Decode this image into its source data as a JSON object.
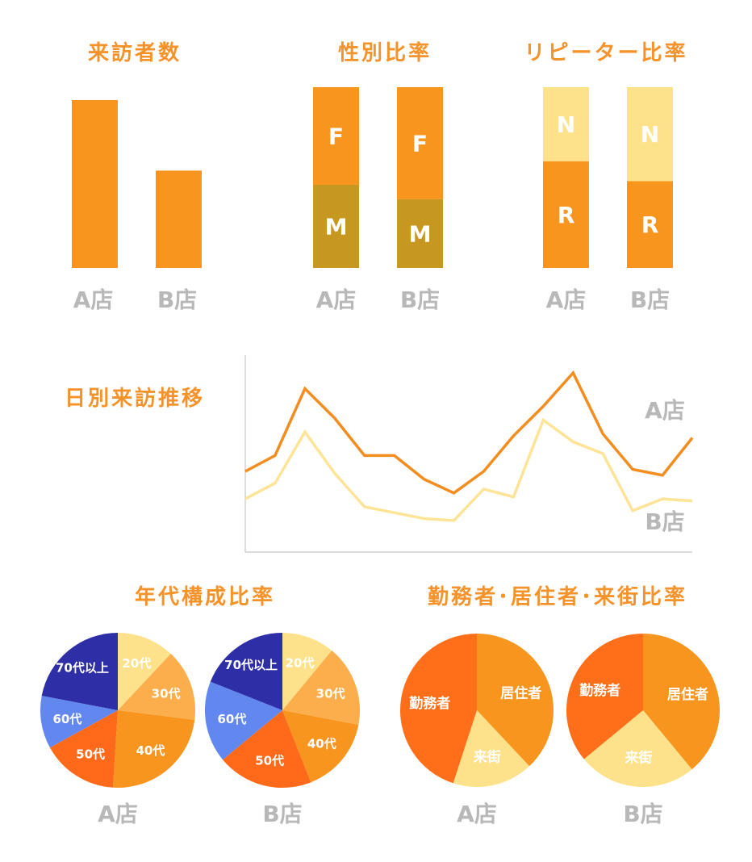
{
  "colors": {
    "accent": "#f5922a",
    "bar_orange": "#f7951e",
    "male": "#c79820",
    "new_light": "#fde28b",
    "line_a": "#f38d1f",
    "line_b": "#fde497",
    "store_label": "#b8b8b8",
    "age_20": "#fde28b",
    "age_30": "#fbae4b",
    "age_40": "#f7951e",
    "age_50": "#ff6a1a",
    "age_60": "#6287ee",
    "age_70": "#2e2ea6",
    "worker": "#ff6f1a",
    "resident": "#f7951e",
    "visitor": "#fde28b"
  },
  "chart_data": [
    {
      "type": "bar",
      "title": "来訪者数",
      "categories": [
        "A店",
        "B店"
      ],
      "values": [
        100,
        58
      ],
      "ylim": [
        0,
        100
      ]
    },
    {
      "type": "bar",
      "stacked": true,
      "title": "性別比率",
      "categories": [
        "A店",
        "B店"
      ],
      "series": [
        {
          "name": "F",
          "values": [
            54,
            62
          ]
        },
        {
          "name": "M",
          "values": [
            46,
            38
          ]
        }
      ],
      "ylim": [
        0,
        100
      ]
    },
    {
      "type": "bar",
      "stacked": true,
      "title": "リピーター比率",
      "categories": [
        "A店",
        "B店"
      ],
      "series": [
        {
          "name": "N",
          "values": [
            41,
            52
          ]
        },
        {
          "name": "R",
          "values": [
            59,
            48
          ]
        }
      ],
      "ylim": [
        0,
        100
      ]
    },
    {
      "type": "line",
      "title": "日別来訪推移",
      "x": [
        1,
        2,
        3,
        4,
        5,
        6,
        7,
        8,
        9,
        10,
        11,
        12,
        13,
        14,
        15,
        16
      ],
      "series": [
        {
          "name": "A店",
          "values": [
            41,
            49,
            83,
            68,
            49,
            49,
            37,
            30,
            41,
            59,
            74,
            91,
            60,
            42,
            39,
            58
          ]
        },
        {
          "name": "B店",
          "values": [
            27,
            35,
            61,
            40,
            23,
            20,
            17,
            16,
            32,
            28,
            67,
            56,
            50,
            21,
            27,
            26
          ]
        }
      ],
      "ylim": [
        0,
        100
      ],
      "grid": false,
      "legend": "right"
    },
    {
      "type": "pie",
      "title": "年代構成比率",
      "panels": [
        {
          "store": "A店",
          "slices": [
            {
              "label": "20代",
              "value": 12
            },
            {
              "label": "30代",
              "value": 15
            },
            {
              "label": "40代",
              "value": 24
            },
            {
              "label": "50代",
              "value": 16
            },
            {
              "label": "60代",
              "value": 11
            },
            {
              "label": "70代以上",
              "value": 22
            }
          ]
        },
        {
          "store": "B店",
          "slices": [
            {
              "label": "20代",
              "value": 11
            },
            {
              "label": "30代",
              "value": 17
            },
            {
              "label": "40代",
              "value": 16
            },
            {
              "label": "50代",
              "value": 20
            },
            {
              "label": "60代",
              "value": 17
            },
            {
              "label": "70代以上",
              "value": 19
            }
          ]
        }
      ]
    },
    {
      "type": "pie",
      "title": "勤務者･居住者･来街比率",
      "panels": [
        {
          "store": "A店",
          "slices": [
            {
              "label": "居住者",
              "value": 38
            },
            {
              "label": "来街",
              "value": 17
            },
            {
              "label": "勤務者",
              "value": 45
            }
          ]
        },
        {
          "store": "B店",
          "slices": [
            {
              "label": "居住者",
              "value": 39
            },
            {
              "label": "来街",
              "value": 25
            },
            {
              "label": "勤務者",
              "value": 36
            }
          ]
        }
      ]
    }
  ]
}
